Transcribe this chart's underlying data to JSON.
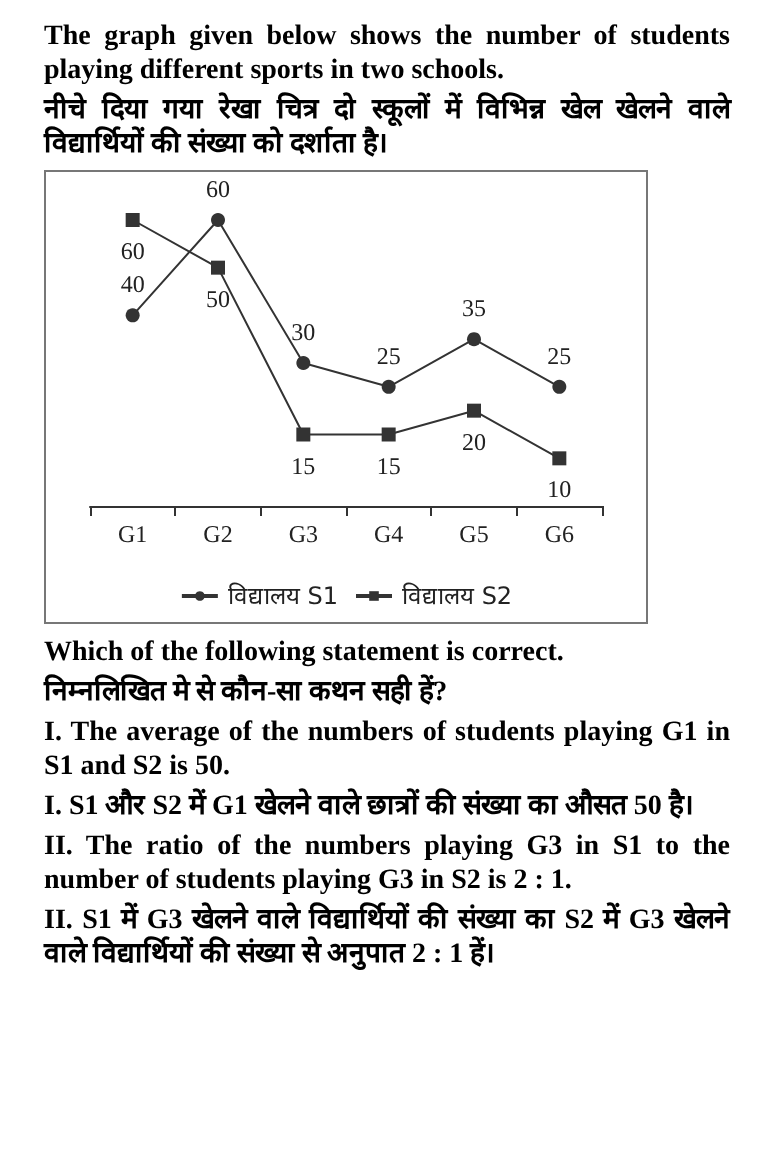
{
  "chart_data": {
    "type": "line",
    "title": "The graph given below shows the number of students playing different sports in two schools.",
    "subtitle": "नीचे दिया गया रेखा चित्र दो स्कूलों में विभिन्न खेल खेलने वाले विद्यार्थियों  की संख्या को दर्शाता है।",
    "categories": [
      "G1",
      "G2",
      "G3",
      "G4",
      "G5",
      "G6"
    ],
    "series": [
      {
        "name": "विद्यालय S1",
        "color": "#333333",
        "marker": "circle",
        "values": [
          40,
          60,
          30,
          25,
          35,
          25
        ]
      },
      {
        "name": "विद्यालय S2",
        "color": "#333333",
        "marker": "square",
        "values": [
          60,
          50,
          15,
          15,
          20,
          10
        ]
      }
    ],
    "data_labels": true,
    "grid": false,
    "legend": "bottom",
    "line_style": "solid",
    "annotations": [
      "Which of the following statement is correct.",
      "निम्नलिखित मे से कौन-सा कथन सही हें?",
      "I. The average of the numbers of students playing G1 in S1 and S2 is 50.",
      "I. S1 और S2  में G1 खेलने वाले छात्रों की संख्या का औसत 50 है।",
      "II. The ratio of the numbers playing G3 in S1 to the number of students playing G3 in S2 is 2 : 1.",
      "II. S1 में G3 खेलने वाले विद्यार्थियों की संख्या का S2 में G3 खेलने वाले विद्यार्थियों की संख्या से अनुपात 2 : 1 हें।"
    ]
  }
}
